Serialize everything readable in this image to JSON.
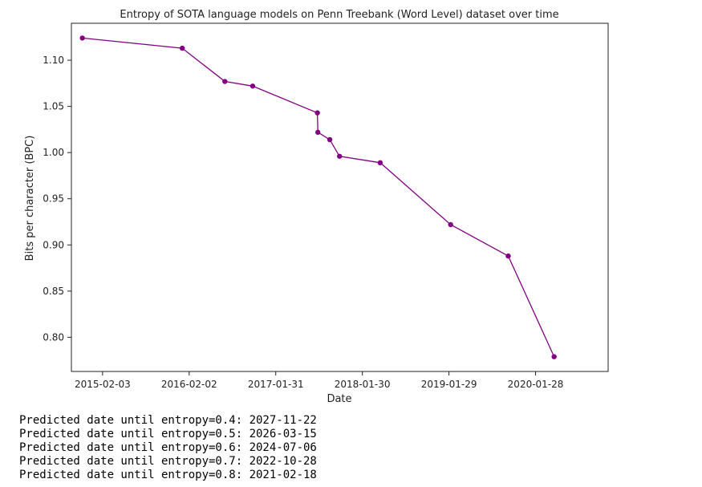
{
  "chart_data": {
    "type": "line",
    "title": "Entropy of SOTA language models on Penn Treebank (Word Level) dataset over time",
    "xlabel": "Date",
    "ylabel": "Bits per character (BPC)",
    "x_ticks": [
      "2015-02-03",
      "2016-02-02",
      "2017-01-31",
      "2018-01-30",
      "2019-01-29",
      "2020-01-28"
    ],
    "y_ticks": [
      "0.80",
      "0.85",
      "0.90",
      "0.95",
      "1.00",
      "1.05",
      "1.10"
    ],
    "xlim": [
      "2014-09-25",
      "2020-11-28"
    ],
    "ylim": [
      0.763,
      1.14
    ],
    "series": [
      {
        "color": "#800080",
        "x": [
          "2014-11-10",
          "2016-01-04",
          "2016-07-01",
          "2016-10-26",
          "2017-07-25",
          "2017-07-27",
          "2017-09-15",
          "2017-10-26",
          "2018-04-15",
          "2019-02-05",
          "2019-10-05",
          "2020-04-15"
        ],
        "y": [
          1.124,
          1.113,
          1.077,
          1.072,
          1.043,
          1.022,
          1.014,
          0.996,
          0.989,
          0.922,
          0.888,
          0.779
        ]
      }
    ],
    "grid": false
  },
  "predictions": [
    "Predicted date until entropy=0.4: 2027-11-22",
    "Predicted date until entropy=0.5: 2026-03-15",
    "Predicted date until entropy=0.6: 2024-07-06",
    "Predicted date until entropy=0.7: 2022-10-28",
    "Predicted date until entropy=0.8: 2021-02-18"
  ]
}
